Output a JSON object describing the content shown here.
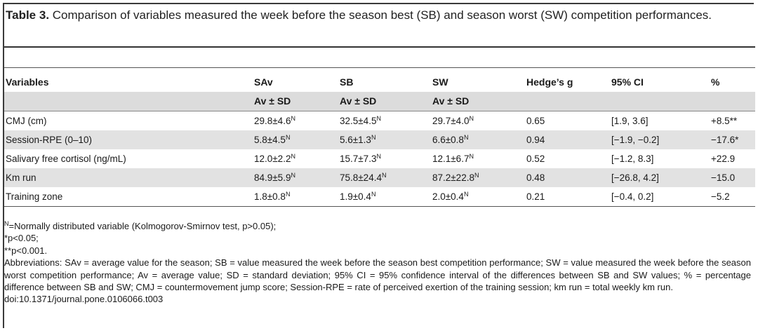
{
  "caption": {
    "label": "Table 3.",
    "text": " Comparison of variables measured the week before the season best (SB) and season worst (SW) competition performances."
  },
  "header_row1": [
    "Variables",
    "SAv",
    "SB",
    "SW",
    "Hedge’s g",
    "95% CI",
    "%"
  ],
  "header_row2": [
    "",
    "Av ± SD",
    "Av ± SD",
    "Av ± SD",
    "",
    "",
    ""
  ],
  "rows": [
    {
      "variable": "CMJ (cm)",
      "sav": "29.8±4.6",
      "sav_sup": "N",
      "sb": "32.5±4.5",
      "sb_sup": "N",
      "sw": "29.7±4.0",
      "sw_sup": "N",
      "g": "0.65",
      "ci": "[1.9, 3.6]",
      "pct": "+8.5**"
    },
    {
      "variable": "Session-RPE (0–10)",
      "sav": "5.8±4.5",
      "sav_sup": "N",
      "sb": "5.6±1.3",
      "sb_sup": "N",
      "sw": "6.6±0.8",
      "sw_sup": "N",
      "g": "0.94",
      "ci": "[−1.9, −0.2]",
      "pct": "−17.6*"
    },
    {
      "variable": "Salivary free cortisol (ng/mL)",
      "sav": "12.0±2.2",
      "sav_sup": "N",
      "sb": "15.7±7.3",
      "sb_sup": "N",
      "sw": "12.1±6.7",
      "sw_sup": "N",
      "g": "0.52",
      "ci": "[−1.2, 8.3]",
      "pct": "+22.9"
    },
    {
      "variable": "Km run",
      "sav": "84.9±5.9",
      "sav_sup": "N",
      "sb": "75.8±24.4",
      "sb_sup": "N",
      "sw": "87.2±22.8",
      "sw_sup": "N",
      "g": "0.48",
      "ci": "[−26.8, 4.2]",
      "pct": "−15.0"
    },
    {
      "variable": "Training zone",
      "sav": "1.8±0.8",
      "sav_sup": "N",
      "sb": "1.9±0.4",
      "sb_sup": "N",
      "sw": "2.0±0.4",
      "sw_sup": "N",
      "g": "0.21",
      "ci": "[−0.4, 0.2]",
      "pct": "−5.2"
    }
  ],
  "notes": {
    "n_sup": "N",
    "normal": "=Normally distributed variable (Kolmogorov-Smirnov test, p>0.05);",
    "p05": "*p<0.05;",
    "p001": "**p<0.001.",
    "abbreviations": "Abbreviations: SAv = average value for the season; SB = value measured the week before the season best competition performance; SW = value measured the week before the season worst competition performance; Av = average value; SD = standard deviation; 95% CI = 95% confidence interval of the differences between SB and SW values; % = percentage difference between SB and SW; CMJ = countermovement jump score; Session-RPE = rate of perceived exertion of the training session; km run = total weekly km run.",
    "doi": "doi:10.1371/journal.pone.0106066.t003"
  }
}
